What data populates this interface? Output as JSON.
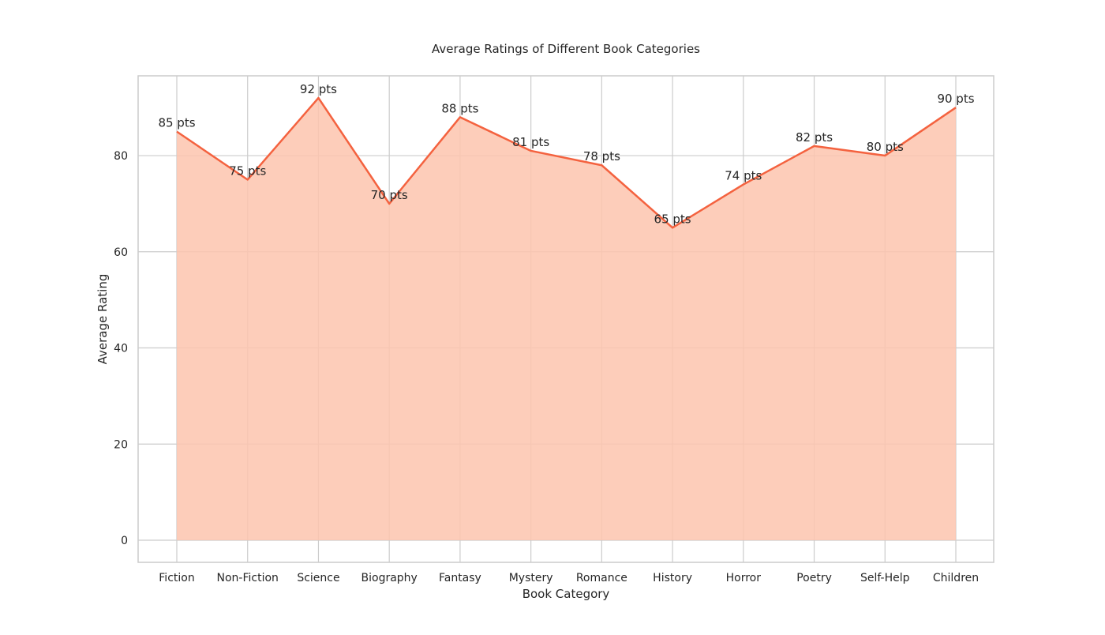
{
  "chart_data": {
    "type": "area",
    "title": "Average Ratings of Different Book Categories",
    "xlabel": "Book Category",
    "ylabel": "Average Rating",
    "categories": [
      "Fiction",
      "Non-Fiction",
      "Science",
      "Biography",
      "Fantasy",
      "Mystery",
      "Romance",
      "History",
      "Horror",
      "Poetry",
      "Self-Help",
      "Children"
    ],
    "series": [
      {
        "values": [
          85,
          75,
          92,
          70,
          88,
          81,
          78,
          65,
          74,
          82,
          80,
          90
        ],
        "data_labels": [
          "85 pts",
          "75 pts",
          "92 pts",
          "70 pts",
          "88 pts",
          "81 pts",
          "78 pts",
          "65 pts",
          "74 pts",
          "82 pts",
          "80 pts",
          "90 pts"
        ],
        "line_color": "#f4623f",
        "fill_color": "#fdc4ae"
      }
    ],
    "ylim": [
      -4.6,
      96.6
    ],
    "yticks": [
      0,
      20,
      40,
      60,
      80
    ],
    "grid": true
  }
}
